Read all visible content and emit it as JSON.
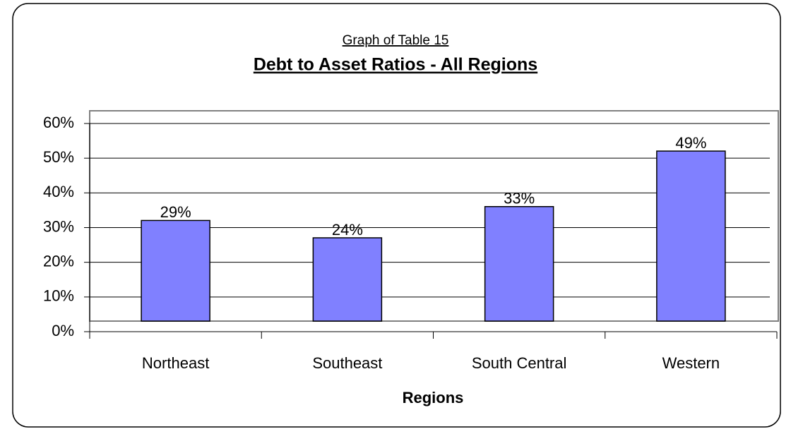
{
  "chart_data": {
    "type": "bar",
    "subtitle": "Graph of Table 15",
    "title": "Debt to Asset Ratios - All Regions",
    "x_label": "Regions",
    "categories": [
      "Northeast",
      "Southeast",
      "South Central",
      "Western"
    ],
    "values": [
      29,
      24,
      33,
      49
    ],
    "value_labels": [
      "29%",
      "24%",
      "33%",
      "49%"
    ],
    "color": "#8080ff",
    "ylim": [
      0,
      60
    ],
    "yticks": [
      {
        "value": 0,
        "label": "0%"
      },
      {
        "value": 10,
        "label": "10%"
      },
      {
        "value": 20,
        "label": "20%"
      },
      {
        "value": 30,
        "label": "30%"
      },
      {
        "value": 40,
        "label": "40%"
      },
      {
        "value": 50,
        "label": "50%"
      },
      {
        "value": 60,
        "label": "60%"
      }
    ],
    "grid": true
  }
}
